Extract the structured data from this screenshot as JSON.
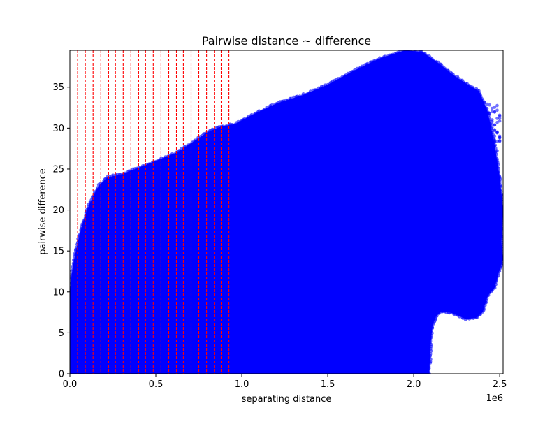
{
  "chart_data": {
    "type": "scatter",
    "title": "Pairwise distance ~ difference",
    "xlabel": "separating distance",
    "ylabel": "pairwise difference",
    "x_offset_label": "1e6",
    "xlim": [
      0,
      2520000
    ],
    "ylim": [
      0,
      39.5
    ],
    "x_ticks": [
      {
        "value": 0,
        "label": "0.0"
      },
      {
        "value": 500000,
        "label": "0.5"
      },
      {
        "value": 1000000,
        "label": "1.0"
      },
      {
        "value": 1500000,
        "label": "1.5"
      },
      {
        "value": 2000000,
        "label": "2.0"
      },
      {
        "value": 2500000,
        "label": "2.5"
      }
    ],
    "y_ticks": [
      {
        "value": 0,
        "label": "0"
      },
      {
        "value": 5,
        "label": "5"
      },
      {
        "value": 10,
        "label": "10"
      },
      {
        "value": 15,
        "label": "15"
      },
      {
        "value": 20,
        "label": "20"
      },
      {
        "value": 25,
        "label": "25"
      },
      {
        "value": 30,
        "label": "30"
      },
      {
        "value": 35,
        "label": "35"
      }
    ],
    "grid": false,
    "point_color": "#0000ff",
    "vline_color": "#ff0000",
    "vlines_x": [
      45000,
      90000,
      135000,
      180000,
      225000,
      265000,
      310000,
      355000,
      400000,
      440000,
      485000,
      530000,
      575000,
      620000,
      660000,
      705000,
      750000,
      795000,
      840000,
      880000,
      925000
    ],
    "upper_envelope": [
      [
        0,
        10
      ],
      [
        10000,
        12
      ],
      [
        25000,
        14
      ],
      [
        45000,
        16
      ],
      [
        70000,
        18
      ],
      [
        100000,
        20
      ],
      [
        130000,
        21.5
      ],
      [
        170000,
        23
      ],
      [
        220000,
        24
      ],
      [
        290000,
        24.3
      ],
      [
        380000,
        25
      ],
      [
        500000,
        26
      ],
      [
        620000,
        27
      ],
      [
        730000,
        28.5
      ],
      [
        800000,
        29.5
      ],
      [
        880000,
        30.2
      ],
      [
        960000,
        30.5
      ],
      [
        1050000,
        31.5
      ],
      [
        1200000,
        33
      ],
      [
        1350000,
        34
      ],
      [
        1500000,
        35.3
      ],
      [
        1650000,
        37
      ],
      [
        1800000,
        38.5
      ],
      [
        1950000,
        39.5
      ],
      [
        2050000,
        39.3
      ],
      [
        2140000,
        38
      ],
      [
        2230000,
        36.5
      ],
      [
        2300000,
        35.5
      ],
      [
        2380000,
        34.5
      ],
      [
        2430000,
        32
      ],
      [
        2470000,
        28
      ],
      [
        2500000,
        24
      ],
      [
        2520000,
        20
      ]
    ],
    "right_edge": [
      [
        2520000,
        20
      ],
      [
        2510000,
        16
      ],
      [
        2520000,
        14
      ],
      [
        2490000,
        12
      ],
      [
        2470000,
        10.5
      ],
      [
        2430000,
        9.5
      ],
      [
        2400000,
        7.5
      ],
      [
        2360000,
        6.8
      ],
      [
        2300000,
        6.7
      ],
      [
        2250000,
        7.2
      ],
      [
        2210000,
        7.5
      ],
      [
        2160000,
        7.6
      ],
      [
        2130000,
        7.0
      ],
      [
        2110000,
        6.0
      ],
      [
        2100000,
        4.0
      ],
      [
        2095000,
        2.0
      ],
      [
        2090000,
        0
      ]
    ],
    "overhang_clusters": [
      {
        "x": [
          2130000,
          2470000
        ],
        "y": [
          25,
          31
        ]
      },
      {
        "x": [
          2060000,
          2440000
        ],
        "y": [
          17,
          24
        ]
      },
      {
        "x": [
          2280000,
          2500000
        ],
        "y": [
          30,
          34.5
        ]
      }
    ]
  }
}
